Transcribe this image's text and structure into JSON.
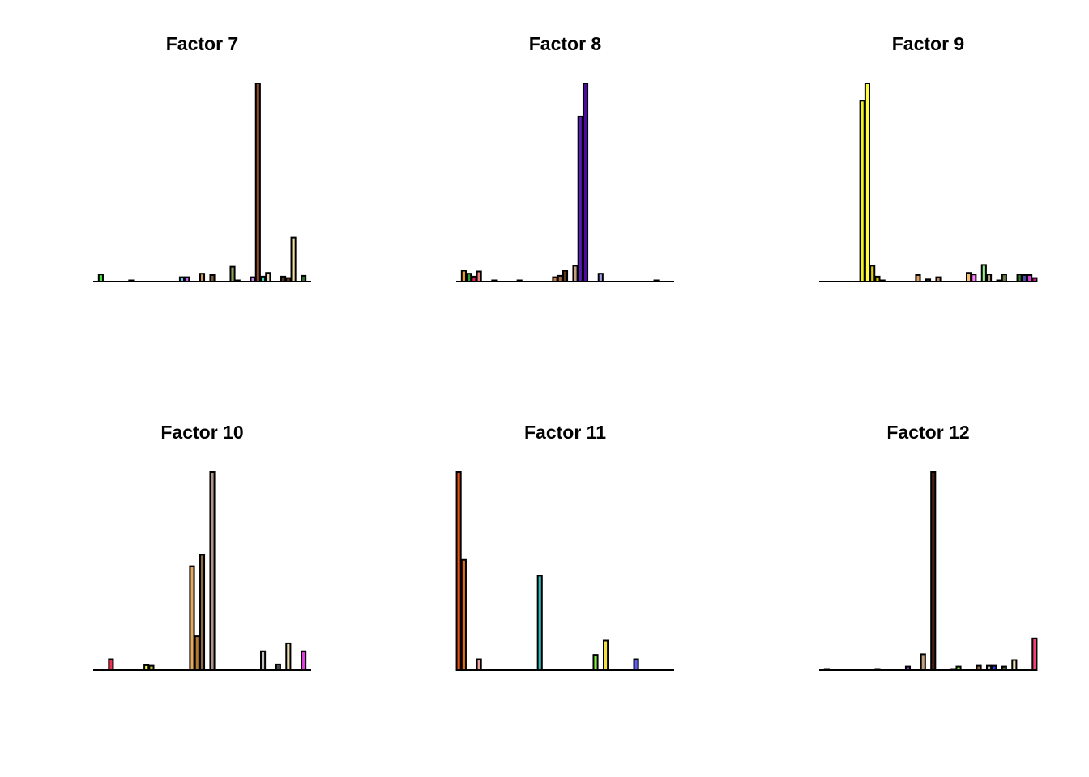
{
  "chart_data": [
    {
      "type": "bar",
      "title": "Factor 7",
      "ylim": [
        0,
        1
      ],
      "bars": [
        {
          "index": 1,
          "value": 0.036,
          "color": "#3fe83f"
        },
        {
          "index": 7,
          "value": 0.004,
          "color": "#2e2e2e"
        },
        {
          "index": 17,
          "value": 0.022,
          "color": "#66ccff"
        },
        {
          "index": 18,
          "value": 0.022,
          "color": "#cc66ff"
        },
        {
          "index": 21,
          "value": 0.04,
          "color": "#c99a5b"
        },
        {
          "index": 23,
          "value": 0.033,
          "color": "#7a5a3a"
        },
        {
          "index": 27,
          "value": 0.075,
          "color": "#8aa05a"
        },
        {
          "index": 28,
          "value": 0.004,
          "color": "#555555"
        },
        {
          "index": 31,
          "value": 0.022,
          "color": "#d080ff"
        },
        {
          "index": 32,
          "value": 1.0,
          "color": "#8b4a2b"
        },
        {
          "index": 33,
          "value": 0.025,
          "color": "#3ce0c0"
        },
        {
          "index": 34,
          "value": 0.044,
          "color": "#f0e0b8"
        },
        {
          "index": 37,
          "value": 0.025,
          "color": "#5a3a2a"
        },
        {
          "index": 38,
          "value": 0.018,
          "color": "#6b3e1e"
        },
        {
          "index": 39,
          "value": 0.222,
          "color": "#f5dfa0"
        },
        {
          "index": 41,
          "value": 0.029,
          "color": "#2e6b2e"
        }
      ]
    },
    {
      "type": "bar",
      "title": "Factor 8",
      "ylim": [
        0,
        1
      ],
      "bars": [
        {
          "index": 1,
          "value": 0.055,
          "color": "#f0a020"
        },
        {
          "index": 2,
          "value": 0.04,
          "color": "#2ea02e"
        },
        {
          "index": 3,
          "value": 0.025,
          "color": "#e0205a"
        },
        {
          "index": 4,
          "value": 0.051,
          "color": "#f08080"
        },
        {
          "index": 7,
          "value": 0.004,
          "color": "#555555"
        },
        {
          "index": 12,
          "value": 0.004,
          "color": "#2e2e2e"
        },
        {
          "index": 19,
          "value": 0.022,
          "color": "#c98040"
        },
        {
          "index": 20,
          "value": 0.029,
          "color": "#a06a3a"
        },
        {
          "index": 21,
          "value": 0.055,
          "color": "#5a3a1a"
        },
        {
          "index": 23,
          "value": 0.08,
          "color": "#c4a080"
        },
        {
          "index": 24,
          "value": 0.833,
          "color": "#5a1ac0"
        },
        {
          "index": 25,
          "value": 1.0,
          "color": "#4b0aa0"
        },
        {
          "index": 28,
          "value": 0.04,
          "color": "#a0a0f0"
        },
        {
          "index": 39,
          "value": 0.004,
          "color": "#555555"
        }
      ]
    },
    {
      "type": "bar",
      "title": "Factor 9",
      "ylim": [
        0,
        1
      ],
      "bars": [
        {
          "index": 8,
          "value": 0.913,
          "color": "#f0f020"
        },
        {
          "index": 9,
          "value": 1.0,
          "color": "#ffff40"
        },
        {
          "index": 10,
          "value": 0.08,
          "color": "#e0d000"
        },
        {
          "index": 11,
          "value": 0.025,
          "color": "#d0c000"
        },
        {
          "index": 12,
          "value": 0.004,
          "color": "#555555"
        },
        {
          "index": 19,
          "value": 0.033,
          "color": "#e0a060"
        },
        {
          "index": 21,
          "value": 0.011,
          "color": "#2e2e2e"
        },
        {
          "index": 23,
          "value": 0.022,
          "color": "#c49060"
        },
        {
          "index": 29,
          "value": 0.044,
          "color": "#f5c070"
        },
        {
          "index": 30,
          "value": 0.036,
          "color": "#ff80ff"
        },
        {
          "index": 32,
          "value": 0.084,
          "color": "#90f090"
        },
        {
          "index": 33,
          "value": 0.036,
          "color": "#b0a080"
        },
        {
          "index": 35,
          "value": 0.004,
          "color": "#555555"
        },
        {
          "index": 36,
          "value": 0.036,
          "color": "#6a7a4a"
        },
        {
          "index": 39,
          "value": 0.036,
          "color": "#2e8a2e"
        },
        {
          "index": 40,
          "value": 0.033,
          "color": "#4a4ab0"
        },
        {
          "index": 41,
          "value": 0.033,
          "color": "#e040e0"
        },
        {
          "index": 42,
          "value": 0.018,
          "color": "#c02080"
        }
      ]
    },
    {
      "type": "bar",
      "title": "Factor 10",
      "ylim": [
        0,
        1
      ],
      "bars": [
        {
          "index": 3,
          "value": 0.055,
          "color": "#f03050"
        },
        {
          "index": 10,
          "value": 0.025,
          "color": "#f0f040"
        },
        {
          "index": 11,
          "value": 0.022,
          "color": "#c0c040"
        },
        {
          "index": 19,
          "value": 0.524,
          "color": "#e0a860"
        },
        {
          "index": 20,
          "value": 0.171,
          "color": "#b07a30"
        },
        {
          "index": 21,
          "value": 0.582,
          "color": "#8a6a40"
        },
        {
          "index": 23,
          "value": 1.0,
          "color": "#b0958a"
        },
        {
          "index": 33,
          "value": 0.095,
          "color": "#c0c0c0"
        },
        {
          "index": 36,
          "value": 0.029,
          "color": "#4a4a4a"
        },
        {
          "index": 38,
          "value": 0.135,
          "color": "#f0e0b0"
        },
        {
          "index": 41,
          "value": 0.095,
          "color": "#e040e0"
        }
      ]
    },
    {
      "type": "bar",
      "title": "Factor 11",
      "ylim": [
        0,
        1
      ],
      "bars": [
        {
          "index": 0,
          "value": 1.0,
          "color": "#e85010"
        },
        {
          "index": 1,
          "value": 0.556,
          "color": "#e07010"
        },
        {
          "index": 4,
          "value": 0.055,
          "color": "#f0a0a0"
        },
        {
          "index": 16,
          "value": 0.476,
          "color": "#30c0c0"
        },
        {
          "index": 27,
          "value": 0.077,
          "color": "#80f040"
        },
        {
          "index": 29,
          "value": 0.149,
          "color": "#f0e040"
        },
        {
          "index": 35,
          "value": 0.055,
          "color": "#6060f0"
        }
      ]
    },
    {
      "type": "bar",
      "title": "Factor 12",
      "ylim": [
        0,
        1
      ],
      "bars": [
        {
          "index": 1,
          "value": 0.004,
          "color": "#555555"
        },
        {
          "index": 11,
          "value": 0.004,
          "color": "#555555"
        },
        {
          "index": 17,
          "value": 0.018,
          "color": "#9040e0"
        },
        {
          "index": 20,
          "value": 0.08,
          "color": "#c4a080"
        },
        {
          "index": 22,
          "value": 1.0,
          "color": "#4a2010"
        },
        {
          "index": 26,
          "value": 0.004,
          "color": "#555555"
        },
        {
          "index": 27,
          "value": 0.018,
          "color": "#80f040"
        },
        {
          "index": 31,
          "value": 0.022,
          "color": "#a07040"
        },
        {
          "index": 33,
          "value": 0.022,
          "color": "#c0c0c0"
        },
        {
          "index": 34,
          "value": 0.022,
          "color": "#2040f0"
        },
        {
          "index": 36,
          "value": 0.018,
          "color": "#406040"
        },
        {
          "index": 38,
          "value": 0.051,
          "color": "#f0e0b0"
        },
        {
          "index": 42,
          "value": 0.16,
          "color": "#f04080"
        }
      ]
    }
  ]
}
